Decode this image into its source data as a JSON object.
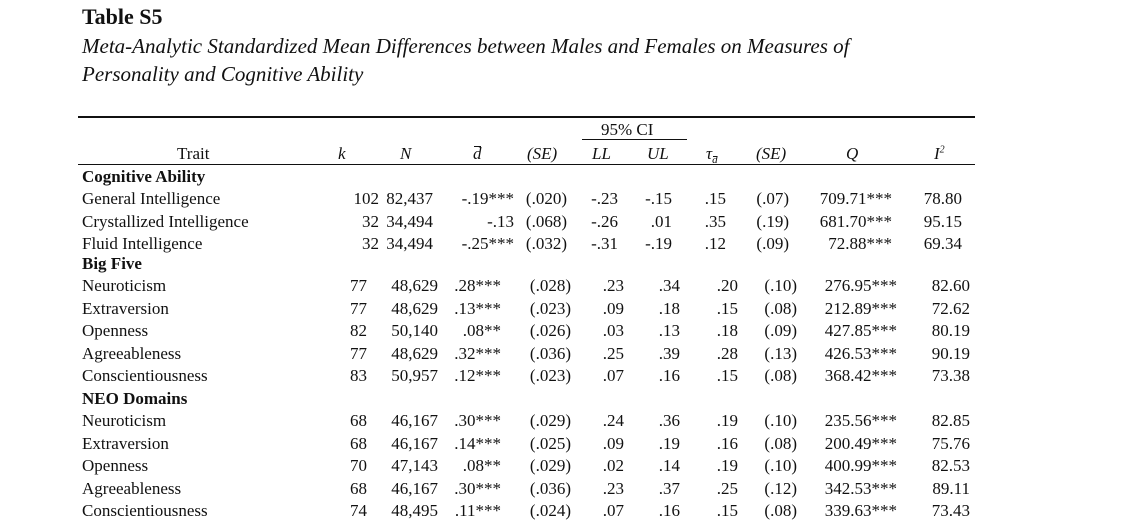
{
  "title": "Table S5",
  "caption": {
    "line1": "Meta-Analytic Standardized Mean Differences between Males and Females on Measures of",
    "line2": "Personality and Cognitive Ability"
  },
  "header": {
    "ci_label": "95% CI",
    "trait": "Trait",
    "k": "k",
    "n": "N",
    "d": "d",
    "se1": "(SE)",
    "ll": "LL",
    "ul": "UL",
    "tau_sym": "τ",
    "tau_sub": "d",
    "se2": "(SE)",
    "q": "Q",
    "i2_base": "I",
    "i2_sup": "2"
  },
  "sections": [
    {
      "name": "Cognitive Ability",
      "rows": [
        {
          "trait": "General Intelligence",
          "k": "102",
          "n": "82,437",
          "d": "-.19***",
          "se": "(.020)",
          "ll": "-.23",
          "ul": "-.15",
          "tau": ".15",
          "tse": "(.07)",
          "q": "709.71***",
          "i2": "78.80"
        },
        {
          "trait": "Crystallized Intelligence",
          "k": "32",
          "n": "34,494",
          "d": "-.13",
          "se": "(.068)",
          "ll": "-.26",
          "ul": ".01",
          "tau": ".35",
          "tse": "(.19)",
          "q": "681.70***",
          "i2": "95.15"
        },
        {
          "trait": "Fluid Intelligence",
          "k": "32",
          "n": "34,494",
          "d": "-.25***",
          "se": "(.032)",
          "ll": "-.31",
          "ul": "-.19",
          "tau": ".12",
          "tse": "(.09)",
          "q": "72.88***",
          "i2": "69.34"
        }
      ]
    },
    {
      "name": "Big Five",
      "rows": [
        {
          "trait": "Neuroticism",
          "k": "77",
          "n": "48,629",
          "d": ".28***",
          "se": "(.028)",
          "ll": ".23",
          "ul": ".34",
          "tau": ".20",
          "tse": "(.10)",
          "q": "276.95***",
          "i2": "82.60"
        },
        {
          "trait": "Extraversion",
          "k": "77",
          "n": "48,629",
          "d": ".13***",
          "se": "(.023)",
          "ll": ".09",
          "ul": ".18",
          "tau": ".15",
          "tse": "(.08)",
          "q": "212.89***",
          "i2": "72.62"
        },
        {
          "trait": "Openness",
          "k": "82",
          "n": "50,140",
          "d": ".08**",
          "se": "(.026)",
          "ll": ".03",
          "ul": ".13",
          "tau": ".18",
          "tse": "(.09)",
          "q": "427.85***",
          "i2": "80.19"
        },
        {
          "trait": "Agreeableness",
          "k": "77",
          "n": "48,629",
          "d": ".32***",
          "se": "(.036)",
          "ll": ".25",
          "ul": ".39",
          "tau": ".28",
          "tse": "(.13)",
          "q": "426.53***",
          "i2": "90.19"
        },
        {
          "trait": "Conscientiousness",
          "k": "83",
          "n": "50,957",
          "d": ".12***",
          "se": "(.023)",
          "ll": ".07",
          "ul": ".16",
          "tau": ".15",
          "tse": "(.08)",
          "q": "368.42***",
          "i2": "73.38"
        }
      ]
    },
    {
      "name": "NEO Domains",
      "rows": [
        {
          "trait": "Neuroticism",
          "k": "68",
          "n": "46,167",
          "d": ".30***",
          "se": "(.029)",
          "ll": ".24",
          "ul": ".36",
          "tau": ".19",
          "tse": "(.10)",
          "q": "235.56***",
          "i2": "82.85"
        },
        {
          "trait": "Extraversion",
          "k": "68",
          "n": "46,167",
          "d": ".14***",
          "se": "(.025)",
          "ll": ".09",
          "ul": ".19",
          "tau": ".16",
          "tse": "(.08)",
          "q": "200.49***",
          "i2": "75.76"
        },
        {
          "trait": "Openness",
          "k": "70",
          "n": "47,143",
          "d": ".08**",
          "se": "(.029)",
          "ll": ".02",
          "ul": ".14",
          "tau": ".19",
          "tse": "(.10)",
          "q": "400.99***",
          "i2": "82.53"
        },
        {
          "trait": "Agreeableness",
          "k": "68",
          "n": "46,167",
          "d": ".30***",
          "se": "(.036)",
          "ll": ".23",
          "ul": ".37",
          "tau": ".25",
          "tse": "(.12)",
          "q": "342.53***",
          "i2": "89.11"
        },
        {
          "trait": "Conscientiousness",
          "k": "74",
          "n": "48,495",
          "d": ".11***",
          "se": "(.024)",
          "ll": ".07",
          "ul": ".16",
          "tau": ".15",
          "tse": "(.08)",
          "q": "339.63***",
          "i2": "73.43"
        }
      ]
    }
  ]
}
